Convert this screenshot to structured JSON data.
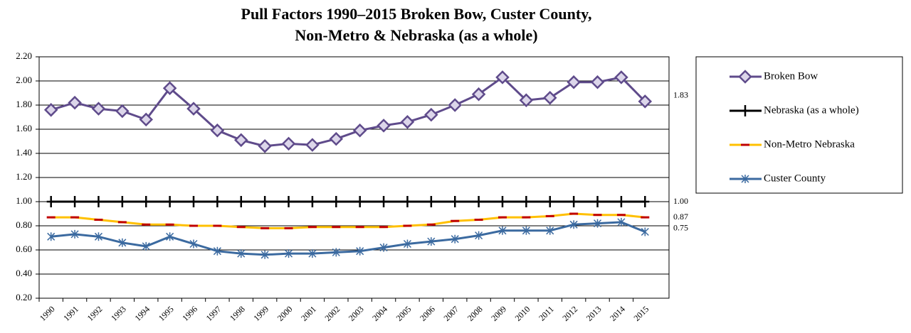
{
  "chart_data": {
    "type": "line",
    "title": [
      "Pull Factors 1990–2015 Broken Bow, Custer County,",
      "Non-Metro & Nebraska (as a whole)"
    ],
    "categories": [
      "1990",
      "1991",
      "1992",
      "1993",
      "1994",
      "1995",
      "1996",
      "1997",
      "1998",
      "1999",
      "2000",
      "2001",
      "2002",
      "2003",
      "2004",
      "2005",
      "2006",
      "2007",
      "2008",
      "2009",
      "2010",
      "2011",
      "2012",
      "2013",
      "2014",
      "2015"
    ],
    "series": [
      {
        "name": "Broken Bow",
        "color": "#5f4b8b",
        "marker": "diamond",
        "values": [
          1.76,
          1.82,
          1.77,
          1.75,
          1.68,
          1.94,
          1.77,
          1.59,
          1.51,
          1.46,
          1.48,
          1.47,
          1.52,
          1.59,
          1.63,
          1.66,
          1.72,
          1.8,
          1.89,
          2.03,
          1.84,
          1.86,
          1.99,
          1.99,
          2.03,
          1.83
        ],
        "value_labels": [
          null,
          null,
          null,
          null,
          null,
          null,
          null,
          null,
          null,
          null,
          null,
          null,
          null,
          null,
          null,
          null,
          null,
          null,
          null,
          null,
          null,
          null,
          null,
          null,
          null,
          "1.83"
        ]
      },
      {
        "name": "Nebraska (as a whole)",
        "color": "#000000",
        "marker": "plus",
        "values": [
          1,
          1,
          1,
          1,
          1,
          1,
          1,
          1,
          1,
          1,
          1,
          1,
          1,
          1,
          1,
          1,
          1,
          1,
          1,
          1,
          1,
          1,
          1,
          1,
          1,
          1
        ],
        "value_labels": [
          null,
          null,
          null,
          null,
          null,
          null,
          null,
          null,
          null,
          null,
          null,
          null,
          null,
          null,
          null,
          null,
          null,
          null,
          null,
          null,
          null,
          null,
          null,
          null,
          null,
          "1.00"
        ]
      },
      {
        "name": "Non-Metro Nebraska",
        "color": "#ffc000",
        "marker": "dash",
        "values": [
          0.87,
          0.87,
          0.85,
          0.83,
          0.81,
          0.81,
          0.8,
          0.8,
          0.79,
          0.78,
          0.78,
          0.79,
          0.79,
          0.79,
          0.79,
          0.8,
          0.81,
          0.84,
          0.85,
          0.87,
          0.87,
          0.88,
          0.9,
          0.89,
          0.89,
          0.87
        ],
        "value_labels": [
          null,
          null,
          null,
          null,
          null,
          null,
          null,
          null,
          null,
          null,
          null,
          null,
          null,
          null,
          null,
          null,
          null,
          null,
          null,
          null,
          null,
          null,
          null,
          null,
          null,
          "0.87"
        ]
      },
      {
        "name": "Custer County",
        "color": "#3b6aa0",
        "marker": "star",
        "values": [
          0.71,
          0.73,
          0.71,
          0.66,
          0.63,
          0.71,
          0.65,
          0.59,
          0.57,
          0.56,
          0.57,
          0.57,
          0.58,
          0.59,
          0.62,
          0.65,
          0.67,
          0.69,
          0.72,
          0.76,
          0.76,
          0.76,
          0.81,
          0.82,
          0.83,
          0.75
        ],
        "value_labels": [
          null,
          null,
          null,
          null,
          null,
          null,
          null,
          null,
          null,
          null,
          null,
          null,
          null,
          null,
          null,
          null,
          null,
          null,
          null,
          null,
          null,
          null,
          null,
          null,
          null,
          "0.75"
        ]
      }
    ],
    "ylim": [
      0.2,
      2.2
    ],
    "yticks": [
      {
        "value": 0.2,
        "label": "0.20"
      },
      {
        "value": 0.4,
        "label": "0.40"
      },
      {
        "value": 0.6,
        "label": "0.60"
      },
      {
        "value": 0.8,
        "label": "0.80"
      },
      {
        "value": 1.0,
        "label": "1.00"
      },
      {
        "value": 1.2,
        "label": "1.20"
      },
      {
        "value": 1.4,
        "label": "1.40"
      },
      {
        "value": 1.6,
        "label": "1.60"
      },
      {
        "value": 1.8,
        "label": "1.80"
      },
      {
        "value": 2.0,
        "label": "2.00"
      },
      {
        "value": 2.2,
        "label": "2.20"
      }
    ],
    "grid": true,
    "legend": "right"
  }
}
